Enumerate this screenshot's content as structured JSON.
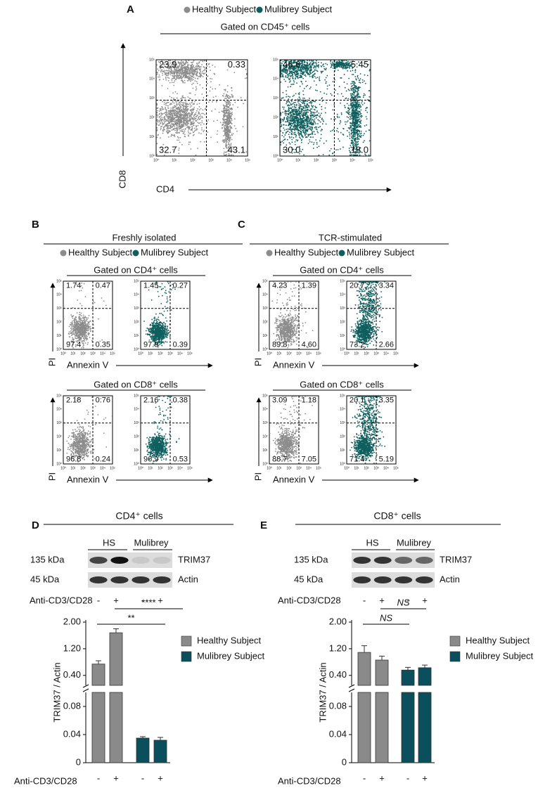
{
  "panel_a": {
    "label": "A",
    "legend": [
      "Healthy Subject",
      "Mulibrey Subject"
    ],
    "gate": "Gated on CD45⁺ cells",
    "x_axis": "CD4",
    "y_axis": "CD8",
    "plots": [
      {
        "quadrants": [
          "23.9",
          "0.33",
          "32.7",
          "43.1"
        ]
      },
      {
        "quadrants": [
          "46.6",
          "5.45",
          "30.0",
          "18.0"
        ]
      }
    ]
  },
  "decades": [
    "10⁰",
    "10¹",
    "10²",
    "10³",
    "10⁴",
    "10⁵"
  ],
  "panel_b": {
    "label": "B",
    "title": "Freshly isolated",
    "legend": [
      "Healthy Subject",
      "Mulibrey Subject"
    ],
    "x_axis": "Annexin V",
    "y_axis": "PI",
    "groups": [
      {
        "gate": "Gated on CD4⁺ cells",
        "plots": [
          {
            "quadrants": [
              "1.74",
              "0.47",
              "97.4",
              "0.35"
            ]
          },
          {
            "quadrants": [
              "1.45",
              "0.27",
              "97.9",
              "0.39"
            ]
          }
        ]
      },
      {
        "gate": "Gated on CD8⁺ cells",
        "plots": [
          {
            "quadrants": [
              "2.18",
              "0.76",
              "96.8",
              "0.24"
            ]
          },
          {
            "quadrants": [
              "2.16",
              "0.38",
              "96.9",
              "0.53"
            ]
          }
        ]
      }
    ]
  },
  "panel_c": {
    "label": "C",
    "title": "TCR-stimulated",
    "legend": [
      "Healthy Subject",
      "Mulibrey Subject"
    ],
    "x_axis": "Annexin V",
    "y_axis": "PI",
    "groups": [
      {
        "gate": "Gated on CD4⁺ cells",
        "plots": [
          {
            "quadrants": [
              "4.23",
              "1.39",
              "89.8",
              "4.60"
            ]
          },
          {
            "quadrants": [
              "20.7",
              "3.34",
              "73.2",
              "2.66"
            ]
          }
        ]
      },
      {
        "gate": "Gated on CD8⁺ cells",
        "plots": [
          {
            "quadrants": [
              "3.09",
              "1.18",
              "88.7",
              "7.05"
            ]
          },
          {
            "quadrants": [
              "20.1",
              "3.35",
              "71.4",
              "5.19"
            ]
          }
        ]
      }
    ]
  },
  "blots": [
    {
      "label": "D",
      "title": "CD4⁺ cells",
      "groups": [
        "HS",
        "Mulibrey"
      ],
      "bands": [
        {
          "size": "135 kDa",
          "protein": "TRIM37"
        },
        {
          "size": "45 kDa",
          "protein": "Actin"
        }
      ],
      "treatment": "Anti-CD3/CD28",
      "signs": [
        "-",
        "+",
        "-",
        "+"
      ]
    },
    {
      "label": "E",
      "title": "CD8⁺ cells",
      "groups": [
        "HS",
        "Mulibrey"
      ],
      "bands": [
        {
          "size": "135 kDa",
          "protein": "TRIM37"
        },
        {
          "size": "45 kDa",
          "protein": "Actin"
        }
      ],
      "treatment": "Anti-CD3/CD28",
      "signs": [
        "-",
        "+",
        "-",
        "+"
      ]
    }
  ],
  "chart_data": [
    {
      "type": "bar",
      "ylabel": "TRIM37 / Actin",
      "xlabel": "Anti-CD3/CD28",
      "categories": [
        "-",
        "+",
        "-",
        "+"
      ],
      "series": [
        {
          "name": "Healthy Subject",
          "color": "#8a8a8a",
          "values": [
            0.74,
            1.68,
            null,
            null
          ],
          "errors": [
            0.1,
            0.12,
            null,
            null
          ]
        },
        {
          "name": "Mulibrey Subject",
          "color": "#0b4f5c",
          "values": [
            null,
            null,
            0.035,
            0.032
          ],
          "errors": [
            null,
            null,
            0.002,
            0.004
          ]
        }
      ],
      "segments": [
        {
          "ylim": [
            0,
            0.1
          ],
          "yticks": [
            0,
            0.04,
            0.08
          ]
        },
        {
          "ylim": [
            0.1,
            2
          ],
          "yticks": [
            {
              "value": 0.4,
              "label": "0.40"
            },
            {
              "value": 1.2,
              "label": "1.20"
            },
            {
              "value": 2,
              "label": "2.00"
            }
          ]
        }
      ],
      "annotations": [
        {
          "text": "**",
          "from": 0,
          "to": 2
        },
        {
          "text": "****",
          "from": 1,
          "to": 3
        }
      ]
    },
    {
      "type": "bar",
      "ylabel": "TRIM37 / Actin",
      "xlabel": "Anti-CD3/CD28",
      "categories": [
        "-",
        "+",
        "-",
        "+"
      ],
      "series": [
        {
          "name": "Healthy Subject",
          "color": "#8a8a8a",
          "values": [
            1.09,
            0.86,
            null,
            null
          ],
          "errors": [
            0.2,
            0.12,
            null,
            null
          ]
        },
        {
          "name": "Mulibrey Subject",
          "color": "#0b4f5c",
          "values": [
            null,
            null,
            0.56,
            0.63
          ],
          "errors": [
            null,
            null,
            0.08,
            0.08
          ]
        }
      ],
      "segments": [
        {
          "ylim": [
            0,
            0.1
          ],
          "yticks": [
            0,
            0.04,
            0.08
          ]
        },
        {
          "ylim": [
            0.1,
            2
          ],
          "yticks": [
            {
              "value": 0.4,
              "label": "0.40"
            },
            {
              "value": 1.2,
              "label": "1.20"
            },
            {
              "value": 2,
              "label": "2.00"
            }
          ]
        }
      ],
      "annotations": [
        {
          "text": "NS",
          "from": 0,
          "to": 2
        },
        {
          "text": "NS",
          "from": 1,
          "to": 3
        }
      ]
    }
  ]
}
